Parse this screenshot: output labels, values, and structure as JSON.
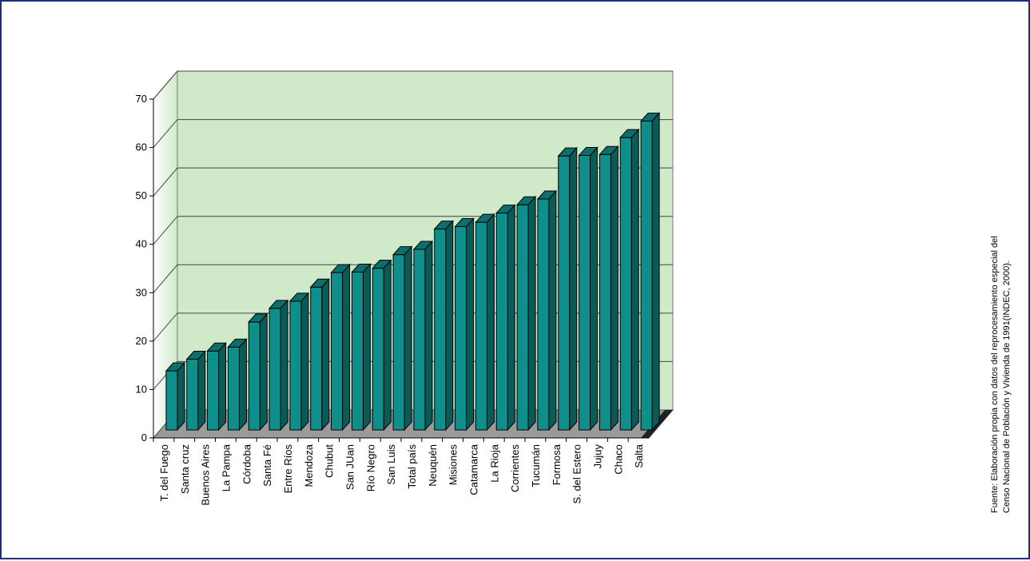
{
  "chart_data": {
    "type": "bar",
    "title": "",
    "xlabel": "",
    "ylabel": "",
    "ylim": [
      0,
      70
    ],
    "yticks": [
      0,
      10,
      20,
      30,
      40,
      50,
      60,
      70
    ],
    "grid": true,
    "legend": "none",
    "style": "3d",
    "colors": {
      "bar_front": "#0f8f8c",
      "bar_side": "#0a5a58",
      "bar_top": "#0c6f6c",
      "wall": "#cfe9c9",
      "gridline": "#444444"
    },
    "categories": [
      "T. del Fuego",
      "Santa cruz",
      "Buenos Aires",
      "La Pampa",
      "Córdoba",
      "Santa Fé",
      "Entre Ríos",
      "Mendoza",
      "Chubut",
      "San JUan",
      "Río Negro",
      "San Luis",
      "Total país",
      "Neuquén",
      "Misiones",
      "Catamarca",
      "La Rioja",
      "Corrientes",
      "Tucumán",
      "Formosa",
      "S. del Estero",
      "Jujuy",
      "Chaco",
      "Salta"
    ],
    "values": [
      13.2,
      15.6,
      17.3,
      18.1,
      23.3,
      26.1,
      27.6,
      30.5,
      33.5,
      33.6,
      34.4,
      37.2,
      38.3,
      42.5,
      43.0,
      43.9,
      45.8,
      47.5,
      48.7,
      57.6,
      57.7,
      57.9,
      61.4,
      64.8
    ]
  },
  "source_note": {
    "line1": "Fuente: Elaboración propia con datos del reprocesamiento especial del",
    "line2": "Censo Nacional de Población y Vivienda de 1991(INDEC, 2000)."
  }
}
